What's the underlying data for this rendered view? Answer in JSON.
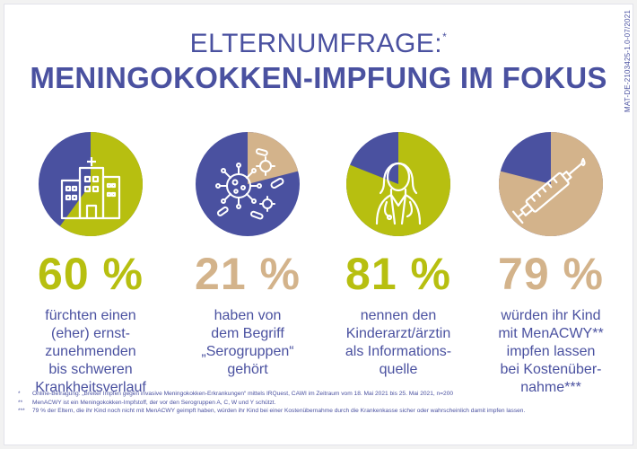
{
  "header": {
    "title_line1": "ELTERNUMFRAGE:",
    "title_mark": "*",
    "title_line2": "MENINGOKOKKEN-IMPFUNG IM FOKUS",
    "side_code": "MAT-DE-2103425-1.0-07/2021"
  },
  "colors": {
    "blue": "#4a51a0",
    "green": "#b7bf10",
    "tan": "#d3b38b"
  },
  "stats": [
    {
      "icon": "hospital-icon",
      "percent_text": "60 %",
      "value": 60,
      "highlight_color": "#b7bf10",
      "rest_color": "#4a51a0",
      "description": [
        "fürchten einen",
        "(eher) ernst-",
        "zunehmenden",
        "bis schweren",
        "Krankheitsverlauf"
      ]
    },
    {
      "icon": "virus-icon",
      "percent_text": "21 %",
      "value": 21,
      "highlight_color": "#d3b38b",
      "rest_color": "#4a51a0",
      "description": [
        "haben von",
        "dem Begriff",
        "„Serogruppen“",
        "gehört"
      ]
    },
    {
      "icon": "doctor-icon",
      "percent_text": "81 %",
      "value": 81,
      "highlight_color": "#b7bf10",
      "rest_color": "#4a51a0",
      "description": [
        "nennen den",
        "Kinderarzt/ärztin",
        "als Informations-",
        "quelle"
      ]
    },
    {
      "icon": "syringe-icon",
      "percent_text": "79 %",
      "value": 79,
      "highlight_color": "#d3b38b",
      "rest_color": "#4a51a0",
      "description": [
        "würden ihr Kind",
        "mit MenACWY**",
        "impfen lassen",
        "bei Kostenüber-",
        "nahme***"
      ]
    }
  ],
  "footnotes": [
    {
      "marker": "*",
      "text": "Online-Befragung: „Breiter Impfen gegen invasive Meningokokken-Erkrankungen“ mittels IRQuest, CAWI im Zeitraum vom 18. Mai 2021 bis 25. Mai 2021, n=200"
    },
    {
      "marker": "**",
      "text": "MenACWY ist ein Meningokokken-Impfstoff, der vor den Serogruppen A, C, W und Y schützt."
    },
    {
      "marker": "***",
      "text": "79 % der Eltern, die ihr Kind noch nicht mit MenACWY geimpft haben, würden ihr Kind bei einer Kostenübernahme durch die Krankenkasse sicher oder wahrscheinlich damit impfen lassen."
    }
  ]
}
